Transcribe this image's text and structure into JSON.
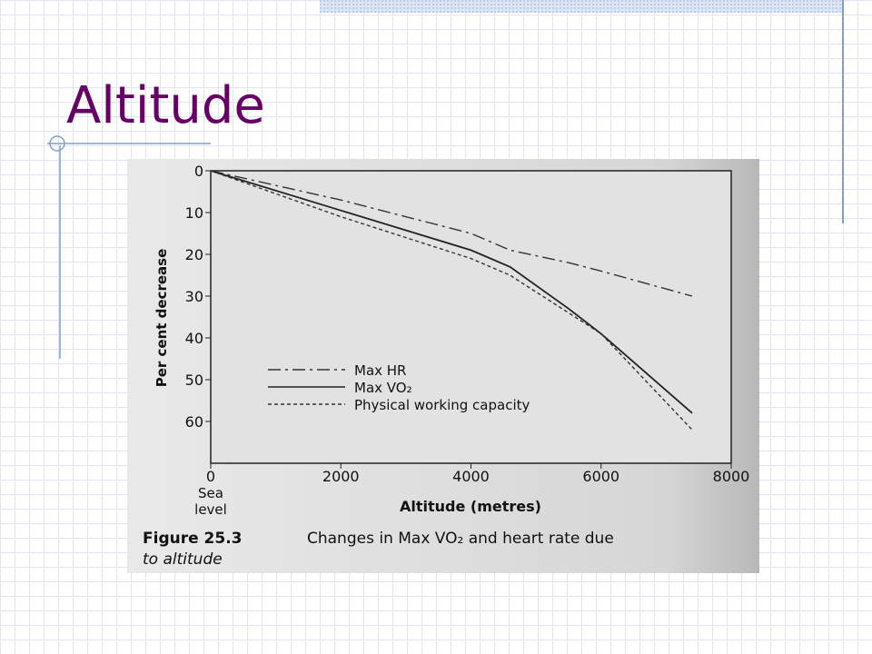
{
  "slide_title": "Altitude",
  "chart_data": {
    "type": "line",
    "x": [
      0,
      2000,
      4000,
      4600,
      5500,
      6000,
      7400
    ],
    "series": [
      {
        "name": "Max HR",
        "color": "#333333",
        "style": "dashdot",
        "values": [
          0,
          7,
          15,
          19,
          22,
          24,
          30
        ]
      },
      {
        "name": "Max VO₂",
        "color": "#222222",
        "style": "solid",
        "values": [
          0,
          9.5,
          19,
          23,
          33,
          39,
          58
        ]
      },
      {
        "name": "Physical working capacity",
        "color": "#333333",
        "style": "dotted",
        "values": [
          0,
          11,
          21,
          25,
          34,
          39,
          62
        ]
      }
    ],
    "xlim": [
      0,
      8000
    ],
    "xticks": [
      0,
      2000,
      4000,
      6000,
      8000
    ],
    "ylim": [
      0,
      70
    ],
    "yticks": [
      0,
      10,
      20,
      30,
      40,
      50,
      60
    ],
    "y_inverted": true,
    "x_origin_label": "Sea level",
    "xlabel": "Altitude (metres)",
    "ylabel": "Per cent decrease",
    "figure_number": "Figure 25.3",
    "caption_lines": [
      "Changes in Max VO₂ and heart rate due",
      "to altitude"
    ]
  }
}
